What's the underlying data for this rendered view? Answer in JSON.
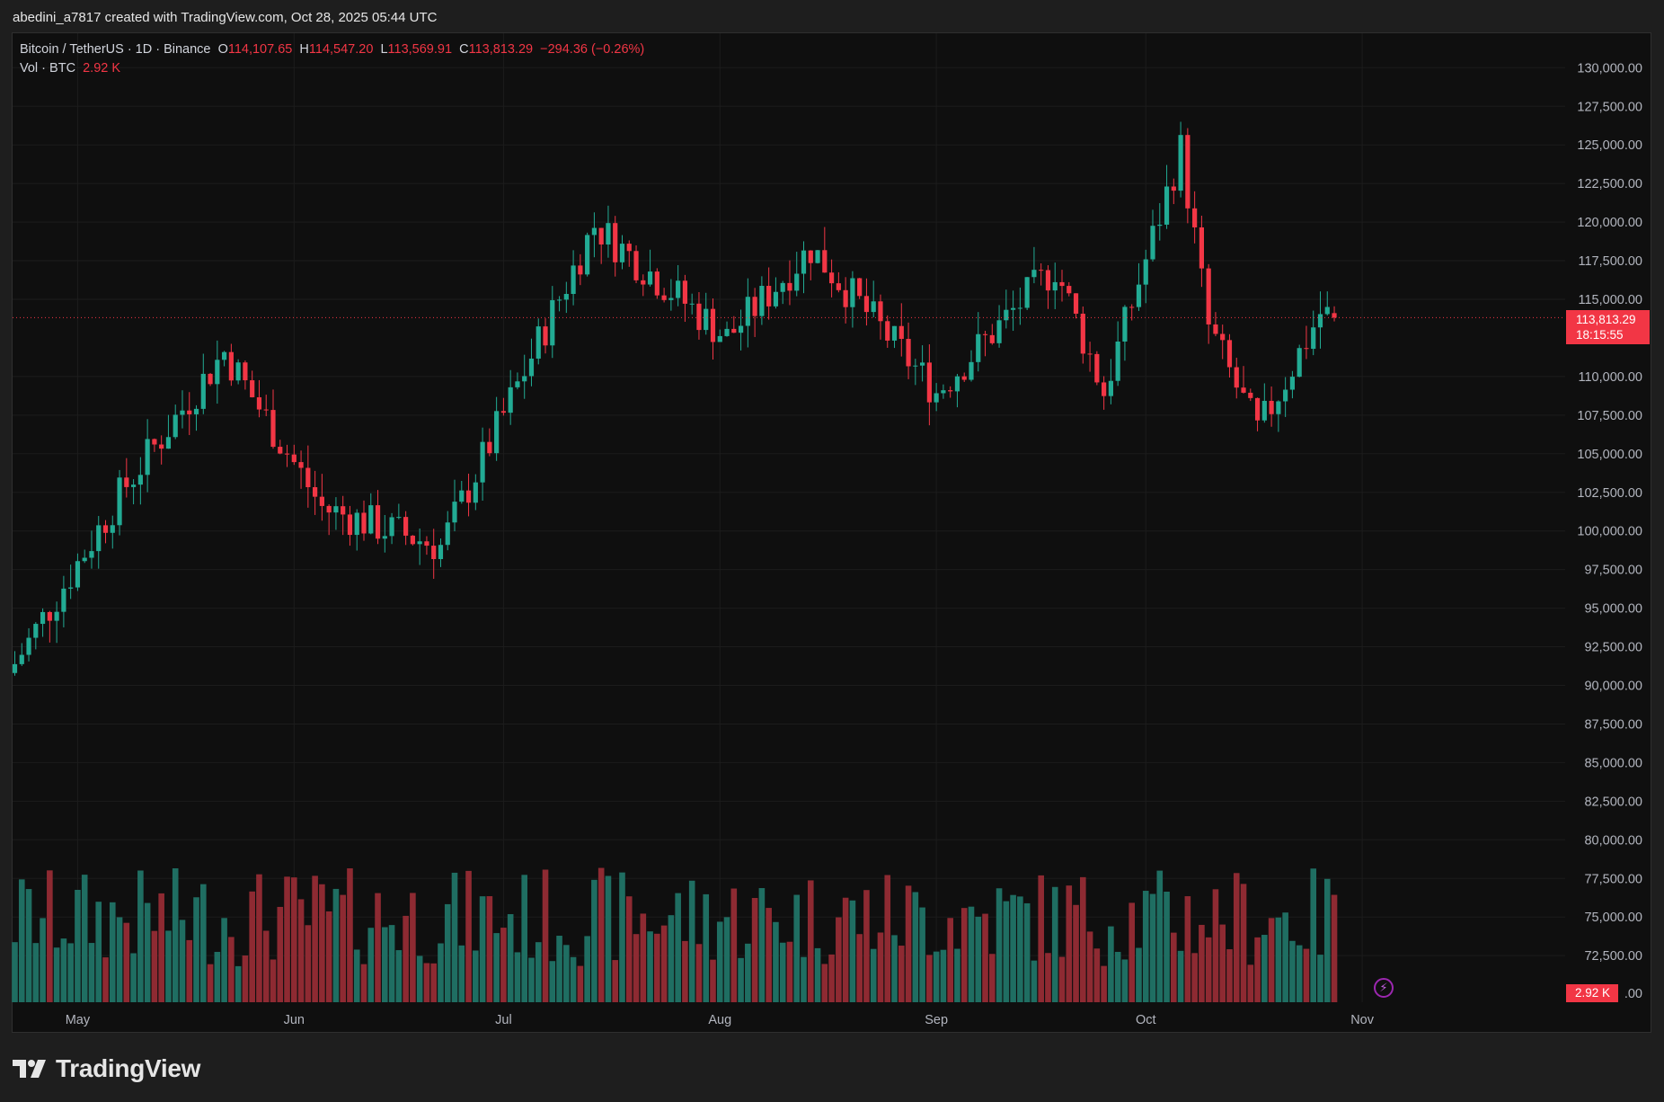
{
  "header": {
    "attribution": "abedini_a7817 created with TradingView.com, Oct 28, 2025 05:44 UTC"
  },
  "legend": {
    "symbol": "Bitcoin / TetherUS · 1D · Binance",
    "open_label": "O",
    "open": "114,107.65",
    "high_label": "H",
    "high": "114,547.20",
    "low_label": "L",
    "low": "113,569.91",
    "close_label": "C",
    "close": "113,813.29",
    "change": "−294.36 (−0.26%)",
    "vol_label": "Vol · BTC",
    "vol_value": "2.92 K"
  },
  "price_tag": {
    "price": "113,813.29",
    "countdown": "18:15:55"
  },
  "volume_tag": "2.92 K",
  "brand": "TradingView",
  "colors": {
    "up": "#22ab94",
    "down": "#f23645",
    "background": "#0f0f0f",
    "vol_up": "#1f6e62",
    "vol_down": "#8e2a32"
  },
  "chart_data": {
    "type": "candlestick",
    "symbol": "Bitcoin / TetherUS",
    "interval": "1D",
    "exchange": "Binance",
    "y_axis_ticks": [
      "130,000.00",
      "127,500.00",
      "125,000.00",
      "122,500.00",
      "120,000.00",
      "117,500.00",
      "115,000.00",
      "110,000.00",
      "107,500.00",
      "105,000.00",
      "102,500.00",
      "100,000.00",
      "97,500.00",
      "95,000.00",
      "92,500.00",
      "90,000.00",
      "87,500.00",
      "85,000.00",
      "82,500.00",
      "80,000.00",
      "77,500.00",
      "75,000.00",
      "72,500.00",
      ".00"
    ],
    "x_axis_ticks": [
      "May",
      "Jun",
      "Jul",
      "Aug",
      "Sep",
      "Oct",
      "Nov"
    ],
    "last_price": 113813.29,
    "grid": true,
    "ohlc_key_points": [
      {
        "date": "2025-04-22",
        "close": 91400
      },
      {
        "date": "2025-05-08",
        "close": 103000
      },
      {
        "date": "2025-05-22",
        "close": 111600
      },
      {
        "date": "2025-06-05",
        "close": 101500
      },
      {
        "date": "2025-06-22",
        "close": 99000
      },
      {
        "date": "2025-07-14",
        "close": 119800
      },
      {
        "date": "2025-08-02",
        "close": 112500
      },
      {
        "date": "2025-08-14",
        "close": 118300
      },
      {
        "date": "2025-09-01",
        "close": 109000
      },
      {
        "date": "2025-09-18",
        "close": 117100
      },
      {
        "date": "2025-09-25",
        "close": 109000
      },
      {
        "date": "2025-10-06",
        "close": 124700
      },
      {
        "date": "2025-10-10",
        "close": 113200
      },
      {
        "date": "2025-10-17",
        "close": 106400
      },
      {
        "date": "2025-10-26",
        "close": 114100
      },
      {
        "date": "2025-10-28",
        "open": 114107.65,
        "high": 114547.2,
        "low": 113569.91,
        "close": 113813.29
      }
    ],
    "volume_last": "2.92 K"
  }
}
